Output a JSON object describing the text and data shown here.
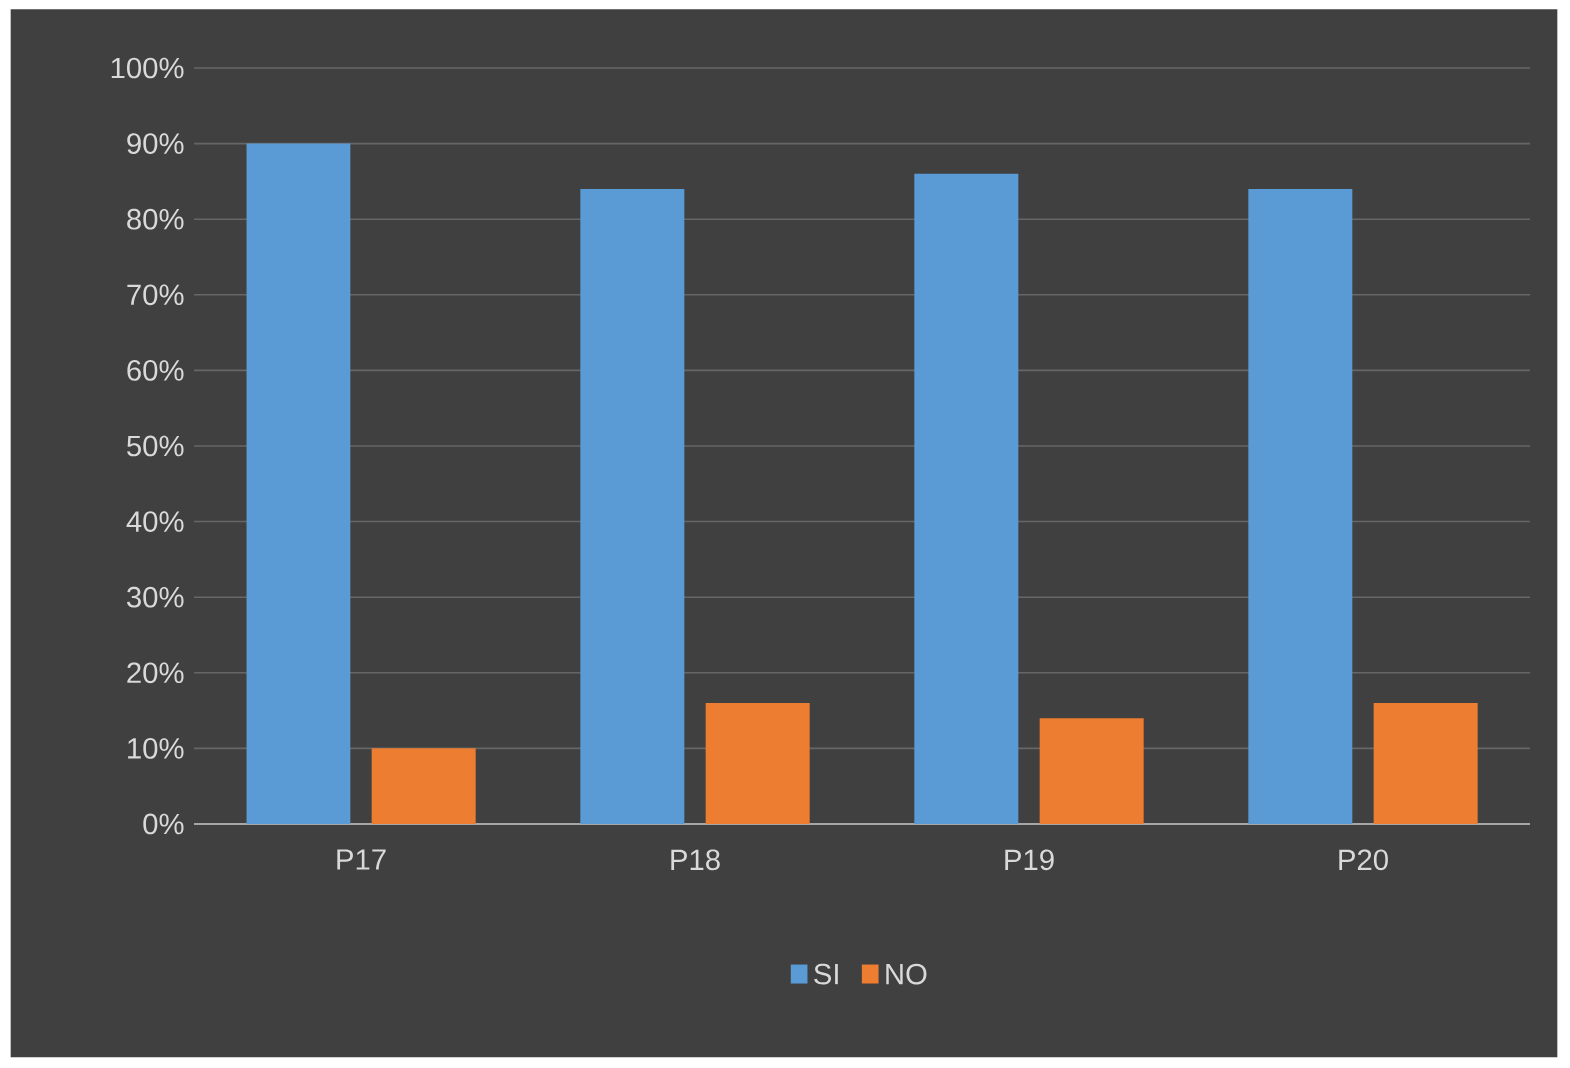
{
  "chart_data": {
    "type": "bar",
    "categories": [
      "P17",
      "P18",
      "P19",
      "P20"
    ],
    "series": [
      {
        "name": "SI",
        "color": "#5b9bd5",
        "values": [
          90,
          84,
          86,
          84
        ]
      },
      {
        "name": "NO",
        "color": "#ed7d31",
        "values": [
          10,
          16,
          14,
          16
        ]
      }
    ],
    "ylim": [
      0,
      100
    ],
    "yticks": [
      {
        "value": 0,
        "label": "0%"
      },
      {
        "value": 10,
        "label": "10%"
      },
      {
        "value": 20,
        "label": "20%"
      },
      {
        "value": 30,
        "label": "30%"
      },
      {
        "value": 40,
        "label": "40%"
      },
      {
        "value": 50,
        "label": "50%"
      },
      {
        "value": 60,
        "label": "60%"
      },
      {
        "value": 70,
        "label": "70%"
      },
      {
        "value": 80,
        "label": "80%"
      },
      {
        "value": 90,
        "label": "90%"
      },
      {
        "value": 100,
        "label": "100%"
      }
    ],
    "grid": "y",
    "legend": "bottom"
  }
}
